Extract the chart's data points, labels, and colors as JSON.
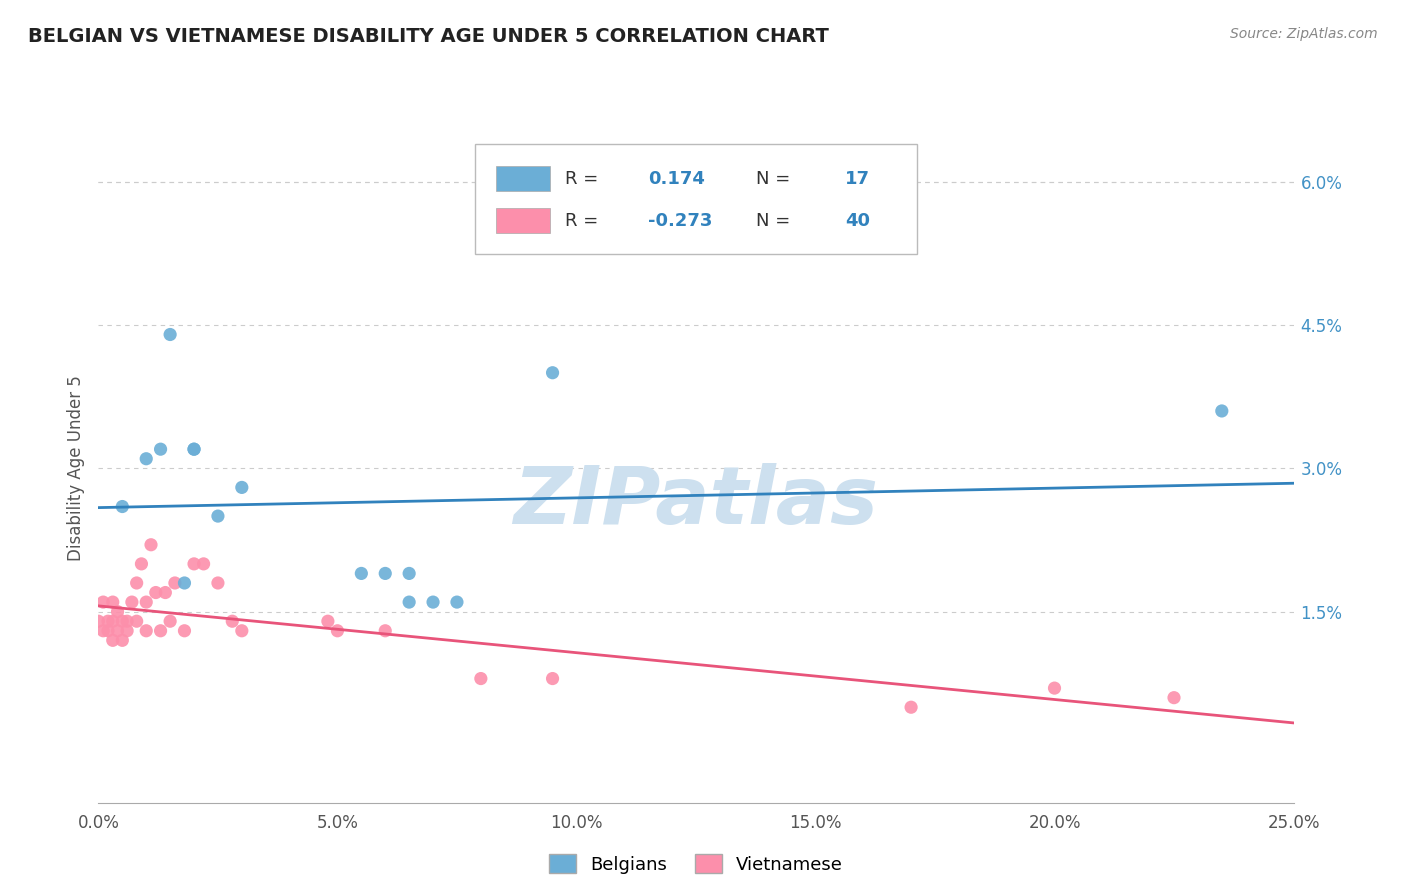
{
  "title": "BELGIAN VS VIETNAMESE DISABILITY AGE UNDER 5 CORRELATION CHART",
  "source": "Source: ZipAtlas.com",
  "ylabel": "Disability Age Under 5",
  "xlim": [
    0.0,
    0.25
  ],
  "ylim": [
    -0.005,
    0.065
  ],
  "xticks": [
    0.0,
    0.05,
    0.1,
    0.15,
    0.2,
    0.25
  ],
  "xticklabels": [
    "0.0%",
    "5.0%",
    "10.0%",
    "15.0%",
    "20.0%",
    "25.0%"
  ],
  "yticks_right": [
    0.0,
    0.015,
    0.03,
    0.045,
    0.06
  ],
  "yticklabels_right": [
    "",
    "1.5%",
    "3.0%",
    "4.5%",
    "6.0%"
  ],
  "belgian_color": "#6baed6",
  "vietnamese_color": "#fc8fab",
  "belgian_line_color": "#3182bd",
  "vietnamese_line_color": "#e8547a",
  "belgian_R": 0.174,
  "belgian_N": 17,
  "vietnamese_R": -0.273,
  "vietnamese_N": 40,
  "watermark": "ZIPatlas",
  "watermark_color": "#cde0ef",
  "background_color": "#ffffff",
  "grid_color": "#cccccc",
  "belgian_scatter_x": [
    0.005,
    0.01,
    0.013,
    0.015,
    0.018,
    0.02,
    0.02,
    0.025,
    0.03,
    0.055,
    0.06,
    0.065,
    0.065,
    0.07,
    0.075,
    0.095,
    0.235
  ],
  "belgian_scatter_y": [
    0.026,
    0.031,
    0.032,
    0.044,
    0.018,
    0.032,
    0.032,
    0.025,
    0.028,
    0.019,
    0.019,
    0.016,
    0.019,
    0.016,
    0.016,
    0.04,
    0.036
  ],
  "vietnamese_scatter_x": [
    0.0,
    0.001,
    0.001,
    0.002,
    0.002,
    0.003,
    0.003,
    0.003,
    0.004,
    0.004,
    0.005,
    0.005,
    0.006,
    0.006,
    0.007,
    0.008,
    0.008,
    0.009,
    0.01,
    0.01,
    0.011,
    0.012,
    0.013,
    0.014,
    0.015,
    0.016,
    0.018,
    0.02,
    0.022,
    0.025,
    0.028,
    0.03,
    0.048,
    0.05,
    0.06,
    0.08,
    0.095,
    0.17,
    0.2,
    0.225
  ],
  "vietnamese_scatter_y": [
    0.014,
    0.013,
    0.016,
    0.013,
    0.014,
    0.012,
    0.014,
    0.016,
    0.013,
    0.015,
    0.012,
    0.014,
    0.014,
    0.013,
    0.016,
    0.014,
    0.018,
    0.02,
    0.013,
    0.016,
    0.022,
    0.017,
    0.013,
    0.017,
    0.014,
    0.018,
    0.013,
    0.02,
    0.02,
    0.018,
    0.014,
    0.013,
    0.014,
    0.013,
    0.013,
    0.008,
    0.008,
    0.005,
    0.007,
    0.006
  ]
}
